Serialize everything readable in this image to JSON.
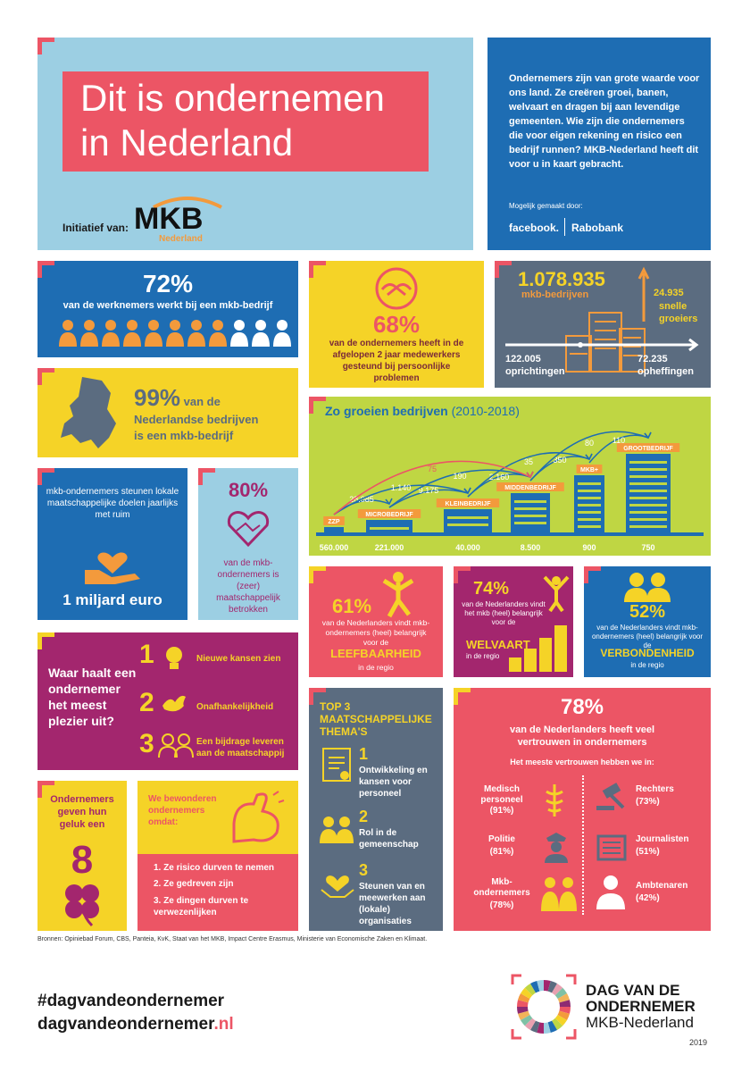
{
  "colors": {
    "blue": "#1E6DB3",
    "lightblue": "#9CCFE3",
    "red": "#EC5565",
    "yellow": "#F5D327",
    "orange": "#F39A3C",
    "slate": "#5B6C80",
    "purple": "#A3266E",
    "lime": "#BFD643",
    "darkpurple": "#8E2A72"
  },
  "header": {
    "title_line1": "Dit is ondernemen",
    "title_line2": "in Nederland",
    "initiatief": "Initiatief van:",
    "mkb": "MKB",
    "mkb_sub": "Nederland"
  },
  "intro": {
    "text": "Ondernemers zijn van grote waarde voor ons land. Ze creëren groei, banen, welvaart en dragen bij aan levendige gemeenten. Wie zijn die ondernemers die voor eigen rekening en risico een bedrijf runnen? MKB-Nederland heeft dit voor u in kaart gebracht.",
    "made_by": "Mogelijk gemaakt door:",
    "sponsor1": "facebook.",
    "sponsor2": "Rabobank"
  },
  "werknemers": {
    "pct": "72%",
    "text": "van de werknemers werkt bij een mkb-bedrijf"
  },
  "steun": {
    "pct": "68%",
    "text": "van de ondernemers heeft in de afgelopen 2 jaar medewerkers gesteund bij persoonlijke problemen"
  },
  "bedrijven": {
    "count": "1.078.935",
    "label": "mkb-bedrijven",
    "growers_count": "24.935",
    "growers_label": "snelle groeiers",
    "oprichtingen_count": "122.005",
    "oprichtingen_label": "oprichtingen",
    "opheffingen_count": "72.235",
    "opheffingen_label": "opheffingen"
  },
  "mkb99": {
    "pct": "99%",
    "text1": " van de",
    "text2": "Nederlandse bedrijven",
    "text3": "is een mkb-bedrijf"
  },
  "groei": {
    "title": "Zo groeien bedrijven",
    "period": " (2010-2018)"
  },
  "chart_data": {
    "type": "flow",
    "categories": [
      "ZZP",
      "MICROBEDRIJF",
      "KLEINBEDRIJF",
      "MIDDENBEDRIJF",
      "MKB+",
      "GROOTBEDRIJF"
    ],
    "counts": [
      "560.000",
      "221.000",
      "40.000",
      "8.500",
      "900",
      "750"
    ],
    "flows_one_step": [
      "28.085",
      "9.175",
      "2.160",
      "350",
      "110"
    ],
    "flows_two_step": [
      "1.140",
      "190",
      "35",
      "80"
    ],
    "flows_long": [
      "75"
    ]
  },
  "doelen": {
    "text": "mkb-ondernemers steunen lokale maatschappelijke doelen jaarlijks met ruim",
    "amount": "1 miljard euro"
  },
  "betrokken": {
    "pct": "80%",
    "text": "van de mkb-ondernemers is (zeer) maatschappelijk betrokken"
  },
  "leefbaar": {
    "pct": "61%",
    "text": "van de Nederlanders vindt mkb-ondernemers (heel) belangrijk voor de",
    "keyword": "LEEFBAARHEID",
    "suffix": "in de regio"
  },
  "welvaart": {
    "pct": "74%",
    "text": "van de Nederlanders vindt het mkb (heel) belangrijk voor de",
    "keyword": "WELVAART",
    "suffix": "in de regio"
  },
  "verbonden": {
    "pct": "52%",
    "text": "van de Nederlanders vindt mkb-ondernemers (heel) belangrijk voor de",
    "keyword": "VERBONDENHEID",
    "suffix": "in de regio"
  },
  "plezier": {
    "question": "Waar haalt een ondernemer het meest plezier uit?",
    "items": [
      {
        "num": "1",
        "label": "Nieuwe kansen zien"
      },
      {
        "num": "2",
        "label": "Onafhankelijkheid"
      },
      {
        "num": "3",
        "label": "Een bijdrage leveren aan de maatschappij"
      }
    ]
  },
  "top3": {
    "title": "TOP 3 MAATSCHAPPELIJKE THEMA'S",
    "items": [
      {
        "num": "1",
        "label": "Ontwikkeling en kansen voor personeel"
      },
      {
        "num": "2",
        "label": "Rol in de gemeenschap"
      },
      {
        "num": "3",
        "label": "Steunen van en meewerken aan (lokale) organisaties"
      }
    ]
  },
  "vertrouwen": {
    "pct": "78%",
    "text": "van de Nederlanders heeft veel vertrouwen in ondernemers",
    "sub": "Het meeste vertrouwen hebben we in:",
    "items": [
      {
        "label": "Medisch personeel",
        "pct": "(91%)"
      },
      {
        "label": "Rechters",
        "pct": "(73%)"
      },
      {
        "label": "Politie",
        "pct": "(81%)"
      },
      {
        "label": "Journalisten",
        "pct": "(51%)"
      },
      {
        "label": "Mkb-ondernemers",
        "pct": "(78%)"
      },
      {
        "label": "Ambtenaren",
        "pct": "(42%)"
      }
    ]
  },
  "geluk": {
    "text": "Ondernemers geven hun geluk een",
    "score": "8"
  },
  "bewonderen": {
    "text": "We bewonderen ondernemers omdat:",
    "items": [
      "1. Ze risico durven te nemen",
      "2. Ze gedreven zijn",
      "3. Ze dingen durven te verwezenlijken"
    ]
  },
  "bronnen": "Bronnen: Opiniebad Forum, CBS, Panteia, KvK, Staat van het MKB, Impact Centre Erasmus, Ministerie van Economische Zaken en Klimaat.",
  "footer": {
    "hashtag": "#dagvandeondernemer",
    "site_main": "dagvandeondernemer",
    "site_tld": ".nl",
    "logo_line1": "DAG VAN DE",
    "logo_line2": "ONDERNEMER",
    "logo_line3": "MKB-Nederland",
    "year": "2019"
  }
}
